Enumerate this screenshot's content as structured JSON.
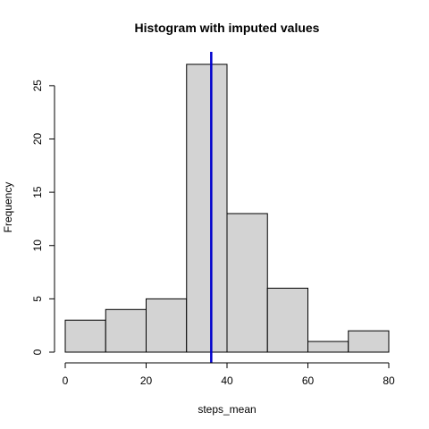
{
  "chart_data": {
    "type": "bar",
    "subtype": "histogram",
    "title": "Histogram with imputed values",
    "xlabel": "steps_mean",
    "ylabel": "Frequency",
    "bins": [
      {
        "from": 0,
        "to": 10,
        "count": 3
      },
      {
        "from": 10,
        "to": 20,
        "count": 4
      },
      {
        "from": 20,
        "to": 30,
        "count": 5
      },
      {
        "from": 30,
        "to": 40,
        "count": 27
      },
      {
        "from": 40,
        "to": 50,
        "count": 13
      },
      {
        "from": 50,
        "to": 60,
        "count": 6
      },
      {
        "from": 60,
        "to": 70,
        "count": 1
      },
      {
        "from": 70,
        "to": 80,
        "count": 2
      }
    ],
    "xlim": [
      0,
      80
    ],
    "ylim": [
      0,
      27
    ],
    "x_ticks": [
      0,
      20,
      40,
      60,
      80
    ],
    "y_ticks": [
      0,
      5,
      10,
      15,
      20,
      25
    ],
    "bar_color": "#d3d3d3",
    "vertical_line": {
      "x": 36.1,
      "color": "#0000cd"
    },
    "grid": false,
    "legend": "none"
  }
}
